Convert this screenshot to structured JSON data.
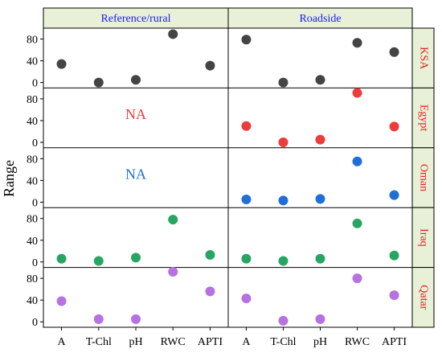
{
  "chart_data": {
    "type": "scatter",
    "ylabel": "Range",
    "categories": [
      "A",
      "T-Chl",
      "pH",
      "RWC",
      "APTI"
    ],
    "yticks": [
      0,
      40,
      80
    ],
    "ylim": [
      -10,
      100
    ],
    "columns": [
      {
        "label": "Reference/rural",
        "color": "#1a1aff"
      },
      {
        "label": "Roadside",
        "color": "#1a1aff"
      }
    ],
    "rows": [
      {
        "label": "KSA",
        "color": "#444444",
        "reference": [
          34,
          0,
          5,
          89,
          31
        ],
        "roadside": [
          79,
          0,
          5,
          73,
          56
        ]
      },
      {
        "label": "Egypt",
        "color": "#ee3b3b",
        "reference": null,
        "na_label": "NA",
        "na_color": "#ee3b3b",
        "roadside": [
          30,
          0,
          5,
          91,
          29
        ]
      },
      {
        "label": "Oman",
        "color": "#1f6fd6",
        "reference": null,
        "na_label": "NA",
        "na_color": "#1f6fd6",
        "roadside": [
          5,
          3,
          6,
          75,
          13
        ]
      },
      {
        "label": "Iraq",
        "color": "#27a663",
        "reference": [
          6,
          2,
          8,
          78,
          13
        ],
        "roadside": [
          6,
          2,
          6,
          71,
          12
        ]
      },
      {
        "label": "Qatar",
        "color": "#b572e0",
        "reference": [
          38,
          5,
          5,
          92,
          56
        ],
        "roadside": [
          43,
          2,
          5,
          80,
          49
        ]
      }
    ],
    "strip_color": "#e8f0d8"
  }
}
